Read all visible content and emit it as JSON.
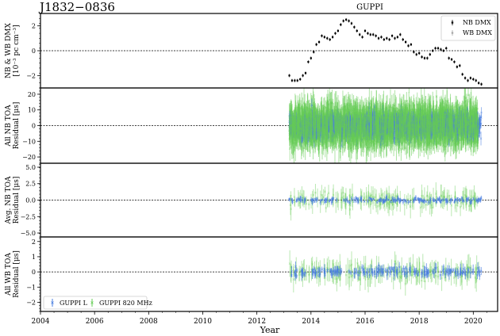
{
  "figure": {
    "title_left": "J1832−0836",
    "title_center": "GUPPI",
    "xlabel": "Year",
    "x_ticks": [
      "2004",
      "2006",
      "2008",
      "2010",
      "2012",
      "2014",
      "2016",
      "2018",
      "2020"
    ],
    "colors": {
      "nb_dmx": "#000000",
      "wb_dmx": "#aaaaaa",
      "guppi_l": "#4a7fe0",
      "guppi_820": "#66cc55"
    }
  },
  "chart_data": [
    {
      "type": "scatter",
      "title": "J1832−0836 GUPPI",
      "ylabel": "NB & WB DMX [10⁻³ pc cm⁻³]",
      "ylabel_lines": [
        "NB & WB DMX",
        "[10⁻³ pc cm⁻³]"
      ],
      "y_ticks": [
        "−2",
        "0",
        "2"
      ],
      "ylim": [
        -3.0,
        3.0
      ],
      "xlim": [
        2004,
        2020.9
      ],
      "legend": [
        "NB DMX",
        "WB DMX"
      ],
      "legend_position": "upper right",
      "reference_line": 0,
      "series": [
        {
          "name": "NB DMX",
          "x": [
            2013.2,
            2013.3,
            2013.4,
            2013.5,
            2013.6,
            2013.7,
            2013.8,
            2013.9,
            2014.0,
            2014.1,
            2014.2,
            2014.3,
            2014.4,
            2014.5,
            2014.6,
            2014.7,
            2014.8,
            2014.9,
            2015.0,
            2015.1,
            2015.2,
            2015.3,
            2015.4,
            2015.5,
            2015.6,
            2015.7,
            2015.8,
            2015.9,
            2016.0,
            2016.1,
            2016.2,
            2016.3,
            2016.4,
            2016.5,
            2016.6,
            2016.7,
            2016.8,
            2016.9,
            2017.0,
            2017.1,
            2017.2,
            2017.3,
            2017.4,
            2017.5,
            2017.6,
            2017.7,
            2017.8,
            2017.9,
            2018.0,
            2018.1,
            2018.2,
            2018.3,
            2018.4,
            2018.5,
            2018.6,
            2018.7,
            2018.8,
            2018.9,
            2019.0,
            2019.1,
            2019.2,
            2019.3,
            2019.4,
            2019.5,
            2019.6,
            2019.7,
            2019.8,
            2019.9,
            2020.0,
            2020.1,
            2020.2,
            2020.3
          ],
          "y": [
            -2.0,
            -2.4,
            -2.4,
            -2.4,
            -2.3,
            -2.0,
            -1.8,
            -0.9,
            -0.6,
            -0.1,
            0.5,
            0.7,
            1.2,
            1.1,
            1.0,
            0.9,
            1.1,
            1.4,
            1.6,
            2.1,
            2.4,
            2.5,
            2.4,
            2.2,
            1.9,
            1.6,
            1.3,
            1.1,
            1.6,
            1.4,
            1.3,
            1.3,
            1.2,
            1.0,
            1.1,
            0.9,
            1.0,
            0.9,
            1.2,
            1.0,
            1.1,
            1.3,
            0.9,
            0.7,
            0.4,
            0.5,
            -0.1,
            -0.3,
            -0.2,
            -0.5,
            -0.6,
            -0.6,
            -0.3,
            0.0,
            0.2,
            0.2,
            0.1,
            0.0,
            0.2,
            -0.6,
            -0.7,
            -0.9,
            -1.3,
            -1.2,
            -1.9,
            -2.2,
            -2.4,
            -2.2,
            -2.3,
            -2.4,
            -2.6,
            -2.7
          ]
        },
        {
          "name": "WB DMX",
          "x": [],
          "y": []
        }
      ]
    },
    {
      "type": "scatter",
      "ylabel": "All NB TOA Residual [μs]",
      "ylabel_lines": [
        "All NB TOA",
        "Residual [μs]"
      ],
      "y_ticks": [
        "−20",
        "−10",
        "0",
        "10",
        "20"
      ],
      "ylim": [
        -24,
        24
      ],
      "xlim": [
        2004,
        2020.9
      ],
      "reference_line": 0,
      "series": [
        {
          "name": "GUPPI L",
          "x_range": [
            2013.2,
            2020.3
          ],
          "y_spread": 8,
          "err_typ": 3
        },
        {
          "name": "GUPPI 820 MHz",
          "x_range": [
            2013.2,
            2020.2
          ],
          "y_spread": 12,
          "err_typ": 8
        }
      ]
    },
    {
      "type": "scatter",
      "ylabel": "Avg. NB TOA Residual [μs]",
      "ylabel_lines": [
        "Avg. NB TOA",
        "Residual [μs]"
      ],
      "y_ticks": [
        "−5.0",
        "−2.5",
        "0.0",
        "2.5",
        "5.0"
      ],
      "ylim": [
        -5.6,
        5.6
      ],
      "xlim": [
        2004,
        2020.9
      ],
      "reference_line": 0,
      "series": [
        {
          "name": "GUPPI L",
          "x_range": [
            2013.2,
            2020.3
          ],
          "y_spread": 0.4,
          "err_typ": 0.3
        },
        {
          "name": "GUPPI 820 MHz",
          "x_range": [
            2013.2,
            2020.2
          ],
          "y_spread": 1.2,
          "err_typ": 1.2
        }
      ]
    },
    {
      "type": "scatter",
      "ylabel": "All WB TOA Residual [μs]",
      "ylabel_lines": [
        "All WB TOA",
        "Residual [μs]"
      ],
      "xlabel": "Year",
      "y_ticks": [
        "−2",
        "−1",
        "0",
        "1",
        "2"
      ],
      "ylim": [
        -2.6,
        2.3
      ],
      "xlim": [
        2004,
        2020.9
      ],
      "reference_line": 0,
      "legend": [
        "GUPPI L",
        "GUPPI 820 MHz"
      ],
      "legend_position": "lower left",
      "series": [
        {
          "name": "GUPPI L",
          "x_range": [
            2013.2,
            2020.3
          ],
          "y_spread": 0.3,
          "err_typ": 0.25
        },
        {
          "name": "GUPPI 820 MHz",
          "x_range": [
            2013.2,
            2020.2
          ],
          "y_spread": 0.6,
          "err_typ": 0.6
        }
      ]
    }
  ]
}
